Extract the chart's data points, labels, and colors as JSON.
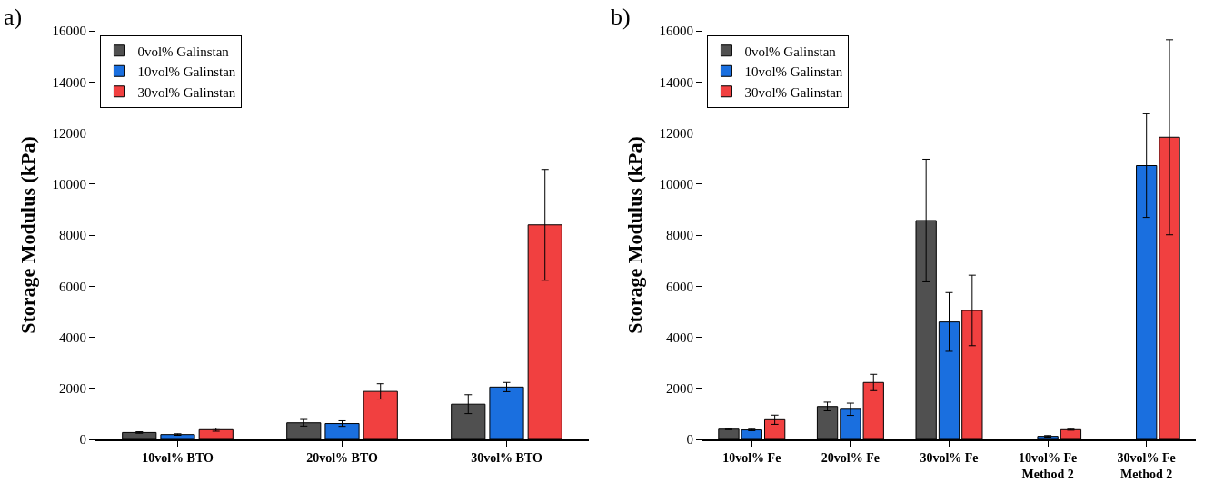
{
  "chart_data": [
    {
      "type": "bar",
      "title": "a)",
      "ylabel": "Storage Modulus (kPa)",
      "categories": [
        "10vol% BTO",
        "20vol% BTO",
        "30vol% BTO"
      ],
      "ylim": [
        0,
        16000
      ],
      "yticks": [
        0,
        2000,
        4000,
        6000,
        8000,
        10000,
        12000,
        14000,
        16000
      ],
      "grid": false,
      "legend": "top left",
      "series": [
        {
          "name": "0vol% Galinstan",
          "color": "#505050",
          "values": [
            270,
            650,
            1380
          ],
          "errors": [
            30,
            130,
            370
          ]
        },
        {
          "name": "10vol% Galinstan",
          "color": "#1a6fdf",
          "values": [
            190,
            620,
            2050
          ],
          "errors": [
            30,
            110,
            180
          ]
        },
        {
          "name": "30vol% Galinstan",
          "color": "#f14040",
          "values": [
            380,
            1880,
            8400
          ],
          "errors": [
            60,
            300,
            2170
          ]
        }
      ]
    },
    {
      "type": "bar",
      "title": "b)",
      "ylabel": "Storage Modulus (kPa)",
      "categories": [
        "10vol% Fe",
        "20vol% Fe",
        "30vol% Fe",
        "10vol% Fe\nMethod 2",
        "30vol% Fe\nMethod 2"
      ],
      "ylim": [
        0,
        16000
      ],
      "yticks": [
        0,
        2000,
        4000,
        6000,
        8000,
        10000,
        12000,
        14000,
        16000
      ],
      "grid": false,
      "legend": "top left",
      "series": [
        {
          "name": "0vol% Galinstan",
          "color": "#505050",
          "values": [
            400,
            1290,
            8570,
            null,
            null
          ],
          "errors": [
            20,
            170,
            2400,
            null,
            null
          ]
        },
        {
          "name": "10vol% Galinstan",
          "color": "#1a6fdf",
          "values": [
            370,
            1180,
            4600,
            120,
            10720
          ],
          "errors": [
            30,
            240,
            1150,
            30,
            2030
          ]
        },
        {
          "name": "30vol% Galinstan",
          "color": "#f14040",
          "values": [
            770,
            2230,
            5050,
            380,
            11830
          ],
          "errors": [
            180,
            320,
            1380,
            20,
            3820
          ]
        }
      ]
    }
  ]
}
